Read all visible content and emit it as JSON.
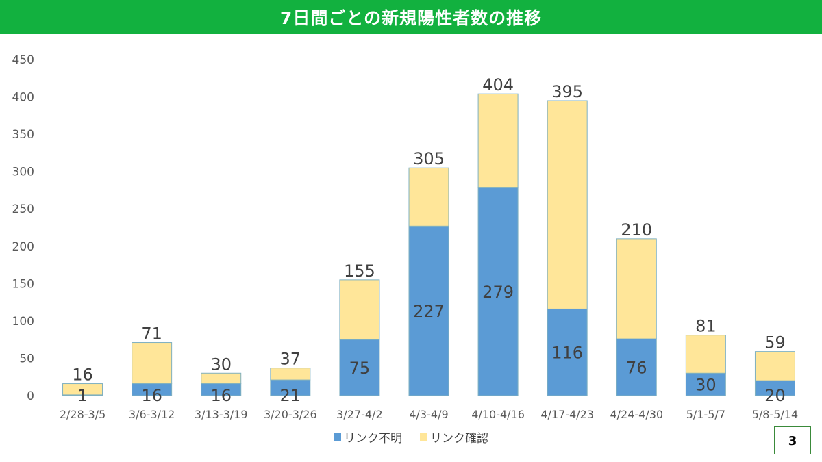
{
  "colors": {
    "title_bar": "#12B13F",
    "unknown": "#5B9BD5",
    "confirmed": "#FFE699",
    "bar_border": "#7FB0C0",
    "axis_text": "#595959",
    "label_text": "#404040"
  },
  "page_number": "3",
  "chart_data": {
    "type": "bar",
    "stacked": true,
    "title": "7日間ごとの新規陽性者数の推移",
    "xlabel": "",
    "ylabel": "",
    "ylim": [
      0,
      450
    ],
    "yticks": [
      0,
      50,
      100,
      150,
      200,
      250,
      300,
      350,
      400,
      450
    ],
    "grid": false,
    "legend_position": "bottom",
    "categories": [
      "2/28-3/5",
      "3/6-3/12",
      "3/13-3/19",
      "3/20-3/26",
      "3/27-4/2",
      "4/3-4/9",
      "4/10-4/16",
      "4/17-4/23",
      "4/24-4/30",
      "5/1-5/7",
      "5/8-5/14"
    ],
    "series": [
      {
        "name": "リンク不明",
        "values": [
          1,
          16,
          16,
          21,
          75,
          227,
          279,
          116,
          76,
          30,
          20
        ]
      },
      {
        "name": "リンク確認",
        "values": [
          15,
          55,
          14,
          16,
          80,
          78,
          125,
          279,
          134,
          51,
          39
        ]
      }
    ],
    "totals": [
      16,
      71,
      30,
      37,
      155,
      305,
      404,
      395,
      210,
      81,
      59
    ]
  }
}
